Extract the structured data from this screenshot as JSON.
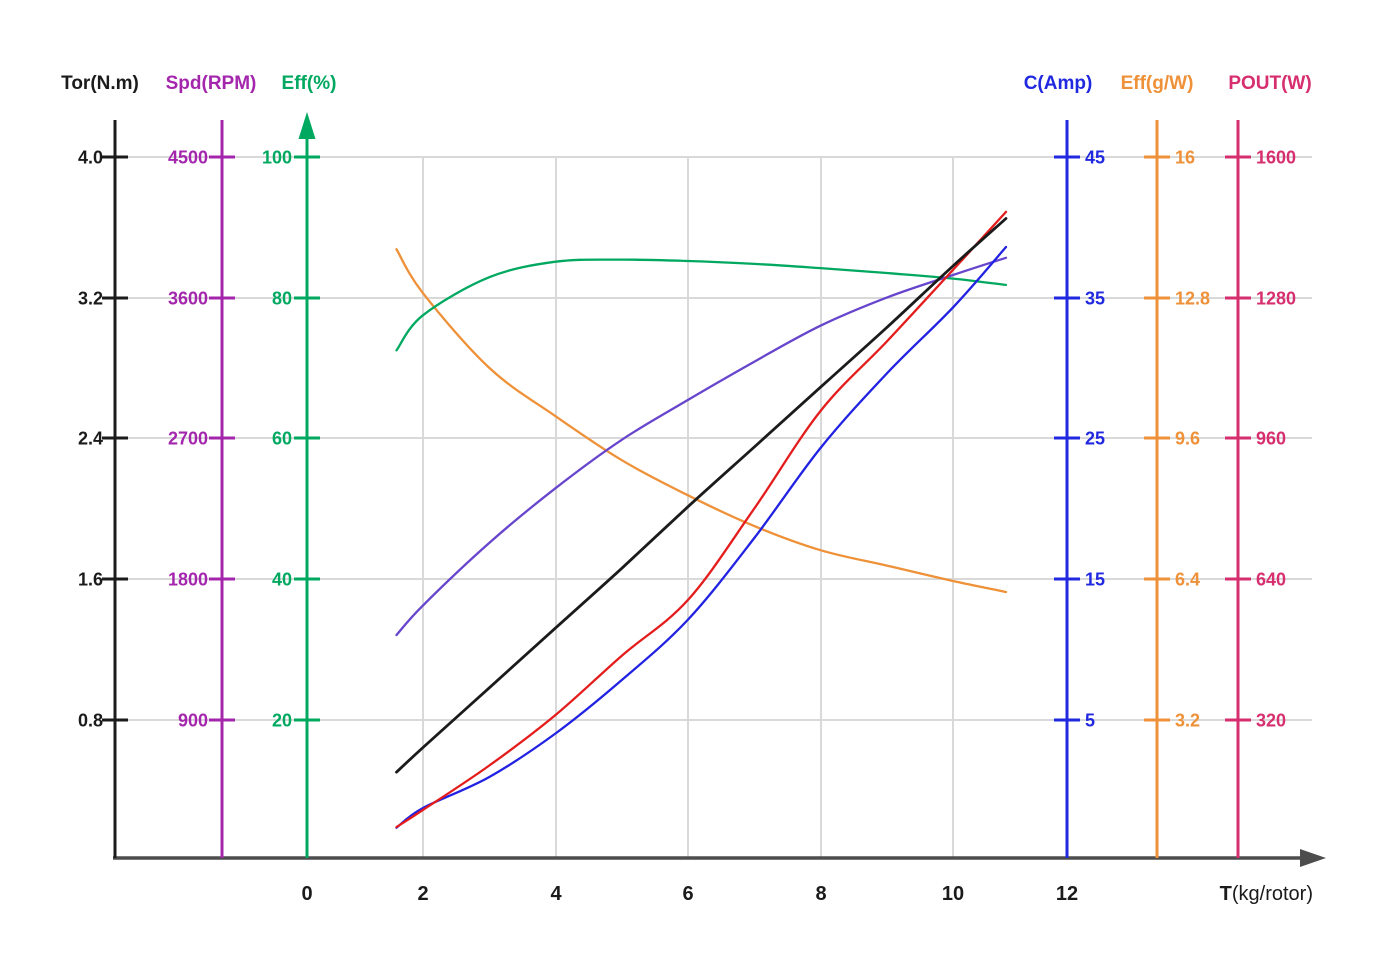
{
  "chart_title": "",
  "axes": {
    "left": [
      {
        "id": "tor",
        "label": "Tor(N.m)",
        "color": "#1b1b1b",
        "ticks": [
          "4.0",
          "3.2",
          "2.4",
          "1.6",
          "0.8"
        ]
      },
      {
        "id": "spd",
        "label": "Spd(RPM)",
        "color": "#a326ad",
        "ticks": [
          "4500",
          "3600",
          "2700",
          "1800",
          "900"
        ]
      },
      {
        "id": "eff_pct",
        "label": "Eff(%)",
        "color": "#00a860",
        "ticks": [
          "100",
          "80",
          "60",
          "40",
          "20"
        ]
      }
    ],
    "right": [
      {
        "id": "c_amp",
        "label": "C(Amp)",
        "color": "#2129e0",
        "ticks": [
          "45",
          "35",
          "25",
          "15",
          "5"
        ]
      },
      {
        "id": "eff_gw",
        "label": "Eff(g/W)",
        "color": "#ee9138",
        "ticks": [
          "16",
          "12.8",
          "9.6",
          "6.4",
          "3.2"
        ]
      },
      {
        "id": "pout",
        "label": "POUT(W)",
        "color": "#d62e6e",
        "ticks": [
          "1600",
          "1280",
          "960",
          "640",
          "320"
        ]
      }
    ]
  },
  "x_axis": {
    "title_bold": "T",
    "title_rest": "(kg/rotor)",
    "tick_labels": [
      "0",
      "2",
      "4",
      "6",
      "8",
      "10",
      "12"
    ]
  },
  "chart_data": {
    "type": "line",
    "x_label": "T (kg/rotor)",
    "x_range": [
      0,
      12
    ],
    "grid": true,
    "legend_position": "top (colored axis titles)",
    "x": [
      1.6,
      2,
      3,
      4,
      5,
      6,
      7,
      8,
      9,
      10,
      10.8
    ],
    "series": [
      {
        "id": "eff_gw",
        "name": "Eff(g/W)",
        "curve_color": "#ee9138",
        "axis_color": "#ee9138",
        "ylim": [
          0,
          16
        ],
        "values": [
          13.9,
          12.9,
          11.2,
          10.1,
          9.1,
          8.3,
          7.6,
          7.05,
          6.7,
          6.35,
          6.1
        ]
      },
      {
        "id": "eff_pct",
        "name": "Eff(%)",
        "curve_color": "#00a860",
        "axis_color": "#00a860",
        "ylim": [
          0,
          100
        ],
        "values": [
          72.5,
          77.5,
          82.9,
          85.1,
          85.4,
          85.2,
          84.8,
          84.2,
          83.5,
          82.7,
          81.8
        ]
      },
      {
        "id": "spd",
        "name": "Spd(RPM)",
        "curve_color": "#6745cd",
        "axis_color": "#a326ad",
        "ylim": [
          0,
          4500
        ],
        "values": [
          1440,
          1630,
          2030,
          2380,
          2690,
          2945,
          3190,
          3420,
          3600,
          3745,
          3855
        ]
      },
      {
        "id": "c_amp",
        "name": "C(Amp)",
        "curve_color": "#2222e2",
        "axis_color": "#2129e0",
        "ylim": [
          0,
          50
        ],
        "values": [
          2.3,
          3.7,
          5.9,
          9.0,
          12.8,
          17.1,
          22.9,
          29.3,
          34.6,
          39.3,
          43.6
        ]
      },
      {
        "id": "pout",
        "name": "POUT(W)",
        "curve_color": "#e41c1c",
        "axis_color": "#d62e6e",
        "ylim": [
          0,
          1600
        ],
        "values": [
          75,
          114,
          215,
          330,
          465,
          592,
          800,
          1022,
          1180,
          1343,
          1475
        ]
      },
      {
        "id": "tor",
        "name": "Tor(N.m)",
        "curve_color": "#1b1b1b",
        "axis_color": "#1b1b1b",
        "ylim": [
          0,
          4
        ],
        "values": [
          0.5,
          0.64,
          0.98,
          1.32,
          1.66,
          2.01,
          2.35,
          2.69,
          3.03,
          3.38,
          3.65
        ]
      }
    ]
  },
  "colors": {
    "grid": "#d9d9d9",
    "x_axis_line": "#4d4d4d",
    "background": "#ffffff"
  }
}
